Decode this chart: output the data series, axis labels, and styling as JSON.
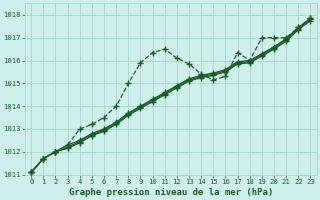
{
  "background_color": "#cff0ea",
  "grid_color": "#aad8cc",
  "line_color": "#1a5c28",
  "xlabel": "Graphe pression niveau de la mer (hPa)",
  "ylim": [
    1011.0,
    1018.5
  ],
  "xlim": [
    -0.5,
    23.5
  ],
  "yticks": [
    1011,
    1012,
    1013,
    1014,
    1015,
    1016,
    1017,
    1018
  ],
  "xticks": [
    0,
    1,
    2,
    3,
    4,
    5,
    6,
    7,
    8,
    9,
    10,
    11,
    12,
    13,
    14,
    15,
    16,
    17,
    18,
    19,
    20,
    21,
    22,
    23
  ],
  "series_dashed": [
    1011.1,
    1011.7,
    1012.0,
    1012.3,
    1013.0,
    1013.2,
    1013.5,
    1014.0,
    1015.0,
    1015.9,
    1016.35,
    1016.5,
    1016.1,
    1015.85,
    1015.4,
    1015.15,
    1015.3,
    1016.35,
    1016.0,
    1017.0,
    1017.0,
    1017.0,
    1017.45,
    1017.85
  ],
  "series_solid": [
    [
      1011.1,
      1011.7,
      1012.0,
      1012.3,
      1012.5,
      1012.8,
      1013.0,
      1013.3,
      1013.7,
      1014.0,
      1014.3,
      1014.6,
      1014.9,
      1015.2,
      1015.35,
      1015.45,
      1015.6,
      1015.95,
      1016.0,
      1016.3,
      1016.6,
      1016.95,
      1017.45,
      1017.85
    ],
    [
      1011.1,
      1011.7,
      1012.0,
      1012.2,
      1012.45,
      1012.75,
      1012.95,
      1013.25,
      1013.65,
      1013.95,
      1014.25,
      1014.55,
      1014.85,
      1015.15,
      1015.3,
      1015.4,
      1015.55,
      1015.9,
      1015.95,
      1016.25,
      1016.55,
      1016.9,
      1017.4,
      1017.8
    ],
    [
      1011.1,
      1011.7,
      1012.0,
      1012.15,
      1012.4,
      1012.7,
      1012.9,
      1013.2,
      1013.6,
      1013.9,
      1014.2,
      1014.5,
      1014.8,
      1015.1,
      1015.25,
      1015.35,
      1015.5,
      1015.85,
      1015.9,
      1016.2,
      1016.5,
      1016.85,
      1017.35,
      1017.75
    ]
  ]
}
